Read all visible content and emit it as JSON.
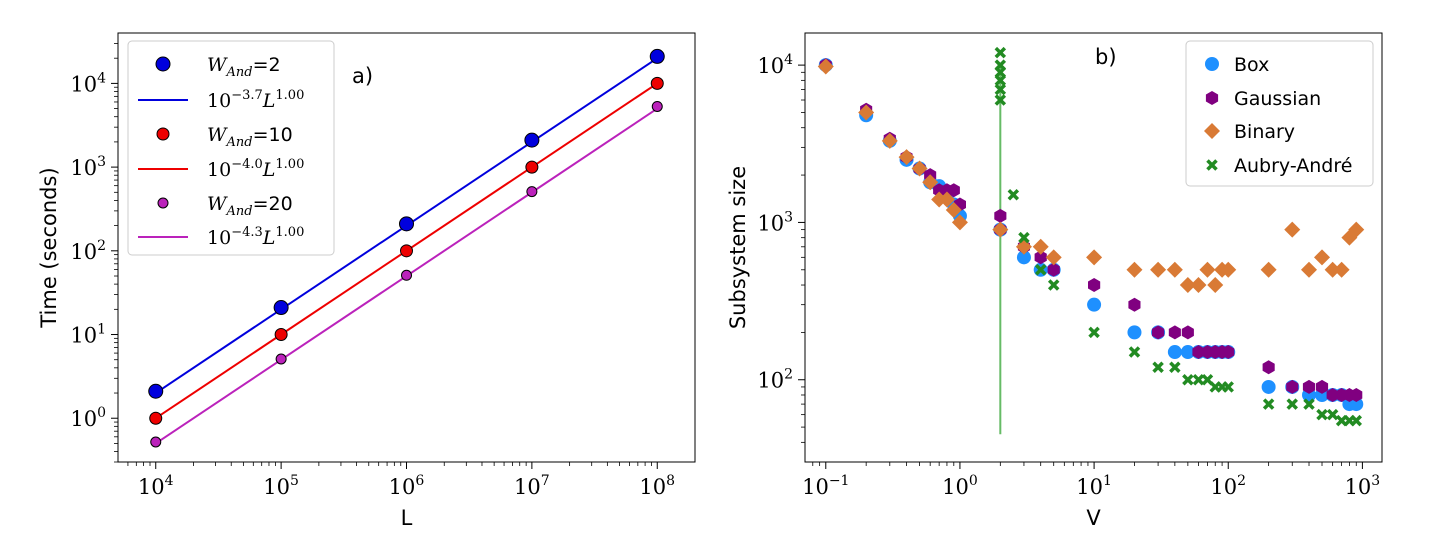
{
  "chart_data": [
    {
      "panel": "a)",
      "type": "scatter",
      "xscale": "log",
      "yscale": "log",
      "xlabel": "L",
      "ylabel": "Time (seconds)",
      "xlim": [
        5000,
        200000000
      ],
      "ylim": [
        0.3,
        40000
      ],
      "xticks": [
        {
          "value": 10000,
          "exp": "4"
        },
        {
          "value": 100000,
          "exp": "5"
        },
        {
          "value": 1000000,
          "exp": "6"
        },
        {
          "value": 10000000,
          "exp": "7"
        },
        {
          "value": 100000000,
          "exp": "8"
        }
      ],
      "yticks": [
        {
          "value": 1,
          "exp": "0"
        },
        {
          "value": 10,
          "exp": "1"
        },
        {
          "value": 100,
          "exp": "2"
        },
        {
          "value": 1000,
          "exp": "3"
        },
        {
          "value": 10000,
          "exp": "4"
        }
      ],
      "tick_base": "10",
      "series": [
        {
          "name": "W_And=2",
          "label_main": "W",
          "label_sub": "And",
          "label_rest": "=2",
          "color": "#0000dd",
          "marker_size": 7,
          "points": [
            [
              10000,
              2.1
            ],
            [
              100000,
              21
            ],
            [
              1000000,
              210
            ],
            [
              10000000,
              2100
            ],
            [
              100000000,
              21000
            ]
          ]
        },
        {
          "name": "W_And=10",
          "label_main": "W",
          "label_sub": "And",
          "label_rest": "=10",
          "color": "#ee0000",
          "marker_size": 6,
          "points": [
            [
              10000,
              1.0
            ],
            [
              100000,
              10
            ],
            [
              1000000,
              100
            ],
            [
              10000000,
              1000
            ],
            [
              100000000,
              10000
            ]
          ]
        },
        {
          "name": "W_And=20",
          "label_main": "W",
          "label_sub": "And",
          "label_rest": "=20",
          "color": "#bb22bb",
          "marker_size": 5,
          "points": [
            [
              10000,
              0.52
            ],
            [
              100000,
              5.1
            ],
            [
              1000000,
              51
            ],
            [
              10000000,
              510
            ],
            [
              100000000,
              5300
            ]
          ]
        }
      ],
      "fits": [
        {
          "label_base": "10",
          "label_exp": "−3.7",
          "label_var": "L",
          "label_varexp": "1.00",
          "color": "#0000dd",
          "coef": 0.0002,
          "power": 1.0
        },
        {
          "label_base": "10",
          "label_exp": "−4.0",
          "label_var": "L",
          "label_varexp": "1.00",
          "color": "#ee0000",
          "coef": 0.0001,
          "power": 1.0
        },
        {
          "label_base": "10",
          "label_exp": "−4.3",
          "label_var": "L",
          "label_varexp": "1.00",
          "color": "#bb22bb",
          "coef": 5e-05,
          "power": 1.0
        }
      ]
    },
    {
      "panel": "b)",
      "type": "scatter",
      "xscale": "log",
      "yscale": "log",
      "xlabel": "V",
      "ylabel": "Subsystem size",
      "xlim": [
        0.07,
        1400
      ],
      "ylim": [
        30,
        16000
      ],
      "xticks": [
        {
          "value": 0.1,
          "exp": "−1"
        },
        {
          "value": 1,
          "exp": "0"
        },
        {
          "value": 10,
          "exp": "1"
        },
        {
          "value": 100,
          "exp": "2"
        },
        {
          "value": 1000,
          "exp": "3"
        }
      ],
      "yticks": [
        {
          "value": 100,
          "exp": "2"
        },
        {
          "value": 1000,
          "exp": "3"
        },
        {
          "value": 10000,
          "exp": "4"
        }
      ],
      "tick_base": "10",
      "vline": {
        "x": 2,
        "y_from": 45,
        "y_to": 10000,
        "color": "#66bb66"
      },
      "series": [
        {
          "name": "Box",
          "marker": "circle",
          "color": "#1e90ff",
          "points": [
            [
              0.1,
              10000
            ],
            [
              0.2,
              4800
            ],
            [
              0.3,
              3300
            ],
            [
              0.4,
              2500
            ],
            [
              0.5,
              2200
            ],
            [
              0.6,
              1800
            ],
            [
              0.7,
              1700
            ],
            [
              0.8,
              1500
            ],
            [
              0.9,
              1300
            ],
            [
              1.0,
              1100
            ],
            [
              2,
              900
            ],
            [
              3,
              600
            ],
            [
              4,
              500
            ],
            [
              5,
              500
            ],
            [
              10,
              300
            ],
            [
              20,
              200
            ],
            [
              30,
              200
            ],
            [
              40,
              150
            ],
            [
              50,
              150
            ],
            [
              60,
              150
            ],
            [
              70,
              150
            ],
            [
              80,
              150
            ],
            [
              90,
              150
            ],
            [
              100,
              150
            ],
            [
              200,
              90
            ],
            [
              300,
              90
            ],
            [
              400,
              80
            ],
            [
              500,
              80
            ],
            [
              600,
              80
            ],
            [
              700,
              80
            ],
            [
              800,
              70
            ],
            [
              900,
              70
            ]
          ]
        },
        {
          "name": "Gaussian",
          "marker": "hexagon",
          "color": "#800080",
          "points": [
            [
              0.1,
              10000
            ],
            [
              0.2,
              5200
            ],
            [
              0.3,
              3400
            ],
            [
              0.4,
              2600
            ],
            [
              0.5,
              2200
            ],
            [
              0.6,
              2000
            ],
            [
              0.7,
              1600
            ],
            [
              0.8,
              1600
            ],
            [
              0.9,
              1600
            ],
            [
              1.0,
              1300
            ],
            [
              2,
              1100
            ],
            [
              2,
              900
            ],
            [
              3,
              700
            ],
            [
              4,
              600
            ],
            [
              5,
              500
            ],
            [
              10,
              400
            ],
            [
              20,
              300
            ],
            [
              30,
              200
            ],
            [
              40,
              200
            ],
            [
              50,
              200
            ],
            [
              60,
              150
            ],
            [
              70,
              150
            ],
            [
              80,
              150
            ],
            [
              90,
              150
            ],
            [
              100,
              150
            ],
            [
              200,
              120
            ],
            [
              300,
              90
            ],
            [
              400,
              90
            ],
            [
              500,
              90
            ],
            [
              600,
              80
            ],
            [
              700,
              80
            ],
            [
              800,
              80
            ],
            [
              900,
              80
            ]
          ]
        },
        {
          "name": "Binary",
          "marker": "diamond",
          "color": "#d97a35",
          "points": [
            [
              0.1,
              9800
            ],
            [
              0.2,
              5000
            ],
            [
              0.3,
              3300
            ],
            [
              0.4,
              2600
            ],
            [
              0.5,
              2200
            ],
            [
              0.6,
              1800
            ],
            [
              0.7,
              1400
            ],
            [
              0.8,
              1400
            ],
            [
              0.9,
              1200
            ],
            [
              1.0,
              1000
            ],
            [
              2,
              900
            ],
            [
              3,
              700
            ],
            [
              4,
              700
            ],
            [
              5,
              600
            ],
            [
              10,
              600
            ],
            [
              20,
              500
            ],
            [
              30,
              500
            ],
            [
              40,
              500
            ],
            [
              50,
              400
            ],
            [
              60,
              400
            ],
            [
              70,
              500
            ],
            [
              80,
              400
            ],
            [
              90,
              500
            ],
            [
              100,
              500
            ],
            [
              200,
              500
            ],
            [
              300,
              900
            ],
            [
              400,
              500
            ],
            [
              500,
              600
            ],
            [
              600,
              500
            ],
            [
              700,
              500
            ],
            [
              800,
              800
            ],
            [
              900,
              900
            ]
          ]
        },
        {
          "name": "Aubry-André",
          "marker": "cross",
          "color": "#228b22",
          "points": [
            [
              2,
              12000
            ],
            [
              2,
              10000
            ],
            [
              2,
              9000
            ],
            [
              2,
              8000
            ],
            [
              2,
              7000
            ],
            [
              2,
              6000
            ],
            [
              2.5,
              1500
            ],
            [
              3,
              800
            ],
            [
              4,
              500
            ],
            [
              5,
              400
            ],
            [
              10,
              200
            ],
            [
              20,
              150
            ],
            [
              30,
              120
            ],
            [
              40,
              120
            ],
            [
              50,
              100
            ],
            [
              60,
              100
            ],
            [
              70,
              100
            ],
            [
              80,
              90
            ],
            [
              90,
              90
            ],
            [
              100,
              90
            ],
            [
              200,
              70
            ],
            [
              300,
              70
            ],
            [
              400,
              70
            ],
            [
              500,
              60
            ],
            [
              600,
              60
            ],
            [
              700,
              55
            ],
            [
              800,
              55
            ],
            [
              900,
              55
            ]
          ]
        }
      ]
    }
  ]
}
